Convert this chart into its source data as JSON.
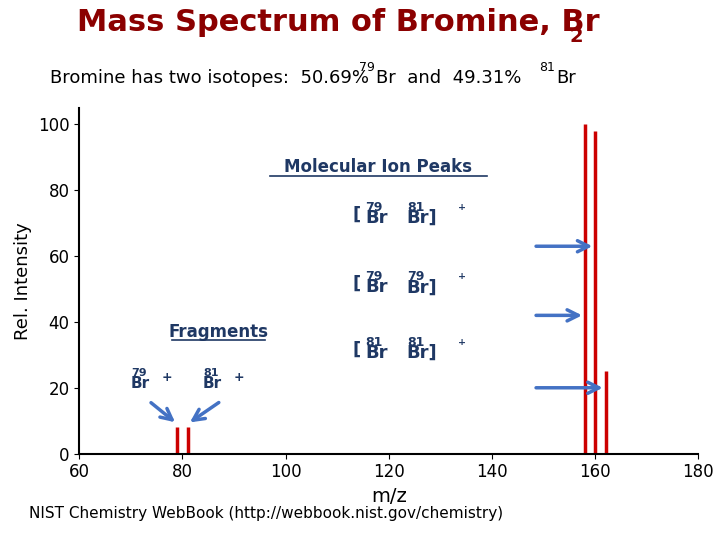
{
  "bg_color": "#ffffff",
  "bar_color": "#cc0000",
  "arrow_color": "#4472c4",
  "text_color_title": "#8b0000",
  "text_color_ann": "#1f3864",
  "xlabel": "m/z",
  "ylabel": "Rel. Intensity",
  "xlim": [
    60,
    180
  ],
  "ylim": [
    0,
    105
  ],
  "yticks": [
    0,
    20,
    40,
    60,
    80,
    100
  ],
  "xticks": [
    60,
    80,
    100,
    120,
    140,
    160,
    180
  ],
  "bars": [
    {
      "x": 79,
      "height": 8.0
    },
    {
      "x": 81,
      "height": 8.0
    },
    {
      "x": 158,
      "height": 100.0
    },
    {
      "x": 160,
      "height": 98.0
    },
    {
      "x": 162,
      "height": 25.0
    }
  ],
  "footer": "NIST Chemistry WebBook (http://webbook.nist.gov/chemistry)"
}
